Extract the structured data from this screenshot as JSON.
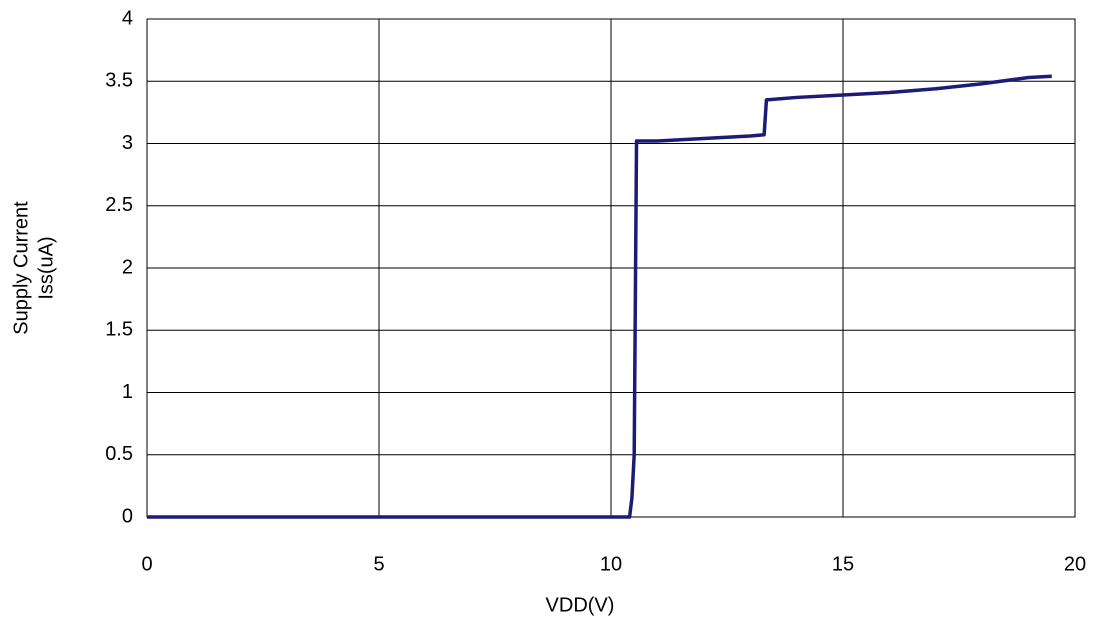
{
  "chart_data": {
    "type": "line",
    "x_label": "VDD(V)",
    "y_label": [
      "Supply Current",
      "Iss(uA)"
    ],
    "x": [
      0,
      10.4,
      10.45,
      10.5,
      10.55,
      11,
      12,
      13,
      13.3,
      13.35,
      14,
      15,
      16,
      17,
      18,
      19,
      19.5
    ],
    "series": [
      {
        "color": "#1c1c78",
        "values": [
          0,
          0,
          0.15,
          0.5,
          3.02,
          3.02,
          3.04,
          3.06,
          3.07,
          3.35,
          3.37,
          3.39,
          3.41,
          3.44,
          3.48,
          3.53,
          3.54
        ]
      }
    ],
    "xlim": [
      0,
      20
    ],
    "xticks": [
      0,
      5,
      10,
      15,
      20
    ],
    "ylim": [
      0,
      4
    ],
    "yticks": [
      0,
      0.5,
      1,
      1.5,
      2,
      2.5,
      3,
      3.5,
      4
    ],
    "grid": true
  }
}
